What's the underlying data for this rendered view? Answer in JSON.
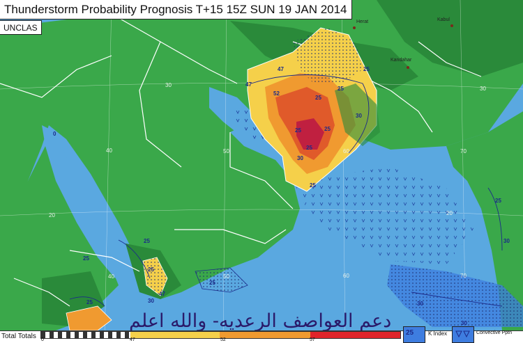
{
  "title": "Thunderstorm Probability Prognosis T+15 15Z SUN 19 JAN 2014",
  "classification": "UNCLAS",
  "cities": [
    {
      "name": "Herat"
    },
    {
      "name": "Kabul"
    },
    {
      "name": "Kandahar"
    }
  ],
  "grid_labels": {
    "lat": [
      "30",
      "20",
      "30",
      "20"
    ],
    "lon": [
      "40",
      "50",
      "60",
      "70",
      "60",
      "70",
      "50",
      "40"
    ]
  },
  "contour_labels": [
    "47",
    "47",
    "52",
    "25",
    "25",
    "25",
    "30",
    "25",
    "30",
    "0",
    "25",
    "25",
    "25",
    "30",
    "25",
    "30",
    "25",
    "47",
    "25",
    "25",
    "25",
    "30",
    "25",
    "30"
  ],
  "colors": {
    "sea": "#5aa8e0",
    "land": "#3aa84a",
    "highland": "#2a8a3a",
    "prob_low": "#f5d04a",
    "prob_mid": "#f09a30",
    "prob_high": "#e05a2a",
    "prob_max": "#c02040",
    "kindex": "#2a5ab8",
    "conv": "#3e7de0"
  },
  "legend": {
    "total_totals_label": "Total Totals",
    "ticks": [
      "0",
      "47",
      "52",
      "57"
    ],
    "kindex_value": "25",
    "kindex_label": "K Index",
    "convective_label": "Convective Pptn"
  },
  "overlay_text": "دعم العواصف الرعديه- والله اعلم"
}
